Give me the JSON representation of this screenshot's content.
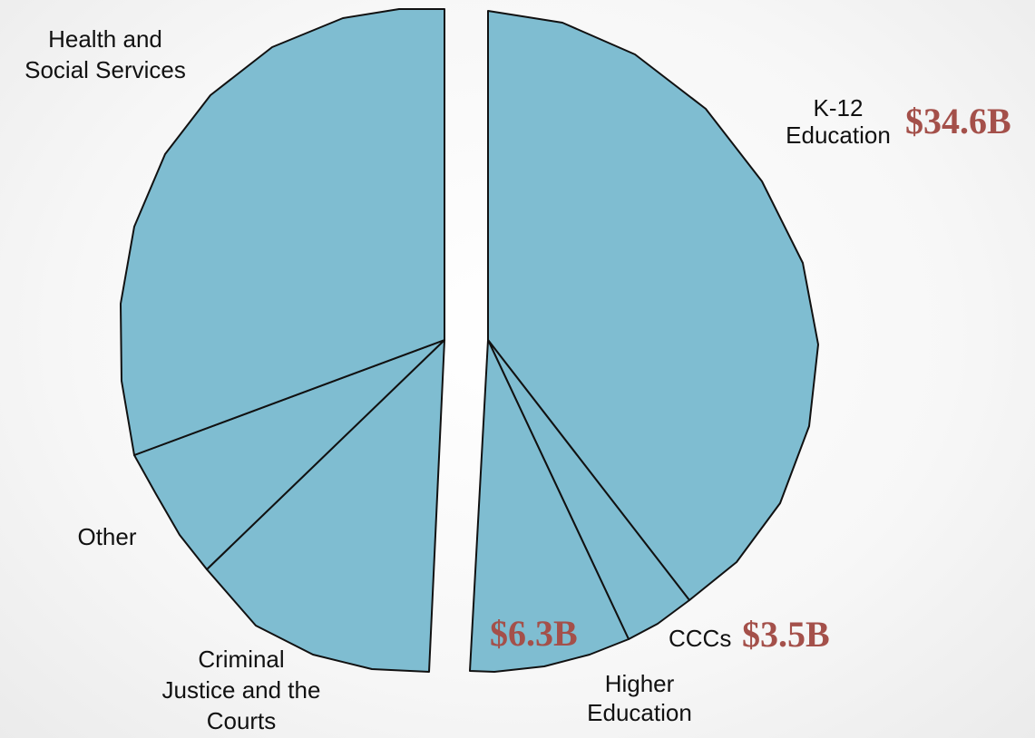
{
  "chart_data": {
    "type": "pie",
    "title": "",
    "slice_color": "#7fbdd1",
    "amount_color": "#a4504a",
    "groups": [
      {
        "name": "right",
        "slices": [
          {
            "id": "k12",
            "label": "K-12 Education",
            "lines": [
              "K-12",
              "Education"
            ],
            "amount": "$34.6B",
            "value": 34.6
          },
          {
            "id": "ccc",
            "label": "CCCs",
            "lines": [
              "CCCs"
            ],
            "amount": "$3.5B",
            "value": 3.5
          },
          {
            "id": "higher_ed",
            "label": "Higher Education",
            "lines": [
              "Higher",
              "Education"
            ],
            "amount": "$6.3B",
            "value": 6.3
          }
        ]
      },
      {
        "name": "left",
        "slices": [
          {
            "id": "criminal_justice",
            "label": "Criminal Justice and the Courts",
            "lines": [
              "Criminal",
              "Justice and the",
              "Courts"
            ]
          },
          {
            "id": "other",
            "label": "Other",
            "lines": [
              "Other"
            ]
          },
          {
            "id": "health",
            "label": "Health and Social Services",
            "lines": [
              "Health and",
              "Social Services"
            ]
          }
        ]
      }
    ]
  }
}
